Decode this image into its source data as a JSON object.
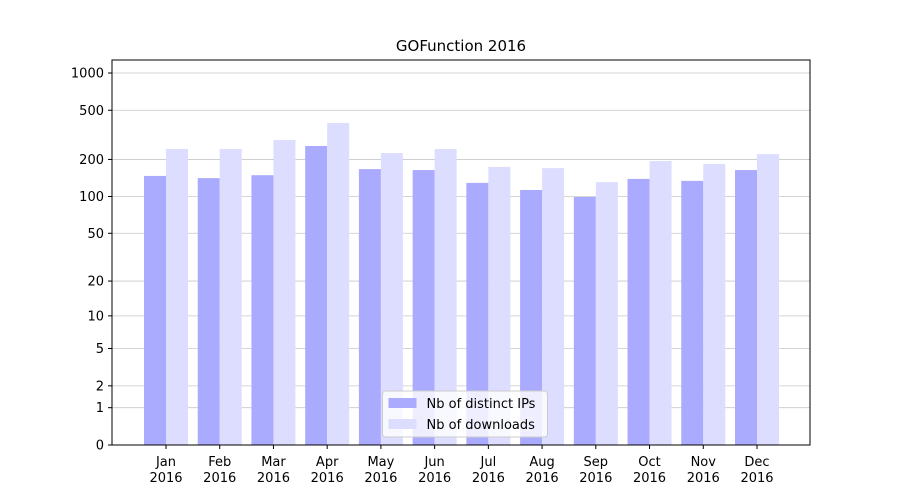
{
  "chart_data": {
    "type": "bar",
    "title": "GOFunction 2016",
    "categories": [
      "Jan 2016",
      "Feb 2016",
      "Mar 2016",
      "Apr 2016",
      "May 2016",
      "Jun 2016",
      "Jul 2016",
      "Aug 2016",
      "Sep 2016",
      "Oct 2016",
      "Nov 2016",
      "Dec 2016"
    ],
    "series": [
      {
        "name": "Nb of distinct IPs",
        "color": "#aaaaff",
        "values": [
          147,
          141,
          149,
          257,
          167,
          164,
          129,
          113,
          99,
          139,
          134,
          164
        ]
      },
      {
        "name": "Nb of downloads",
        "color": "#ddddff",
        "values": [
          243,
          243,
          287,
          394,
          225,
          243,
          174,
          170,
          131,
          194,
          184,
          221
        ]
      }
    ],
    "yscale": "log1p",
    "ylim": [
      0,
      1273
    ],
    "yticks": [
      0,
      1,
      2,
      5,
      10,
      20,
      50,
      100,
      200,
      500,
      1000
    ],
    "grid": true,
    "legend": "lower center"
  }
}
